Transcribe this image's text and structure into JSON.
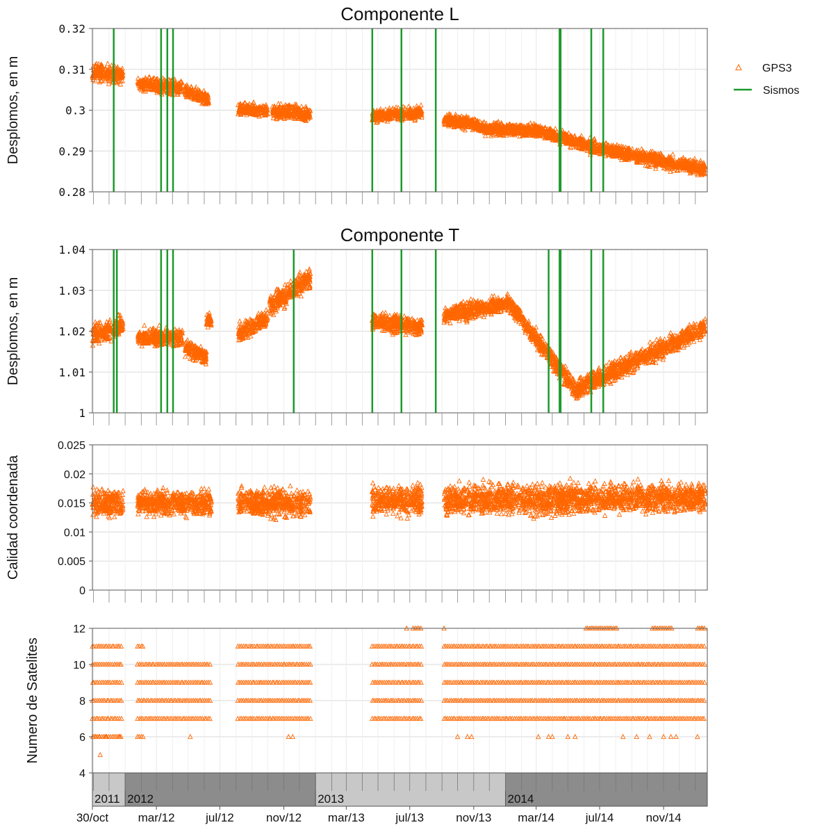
{
  "chart_data": [
    {
      "type": "scatter",
      "title": "Componente L",
      "ylabel": "Desplomos, en m",
      "ylim": [
        0.28,
        0.32
      ],
      "ytick_values": [
        0.28,
        0.29,
        0.3,
        0.31,
        0.32
      ],
      "ytick_labels": [
        "0.28",
        "0.29",
        "0.3",
        "0.31",
        "0.32"
      ],
      "segments": [
        {
          "x": [
            "2011-10-30",
            "2011-12-28"
          ],
          "y": [
            0.3095,
            0.3085
          ],
          "spread": 0.0025
        },
        {
          "x": [
            "2012-01-25",
            "2012-04-20"
          ],
          "y": [
            0.3065,
            0.3055
          ],
          "spread": 0.002
        },
        {
          "x": [
            "2012-04-25",
            "2012-06-10"
          ],
          "y": [
            0.3045,
            0.3025
          ],
          "spread": 0.002
        },
        {
          "x": [
            "2012-08-05",
            "2012-10-01"
          ],
          "y": [
            0.3003,
            0.2998
          ],
          "spread": 0.0018
        },
        {
          "x": [
            "2012-10-10",
            "2012-12-22"
          ],
          "y": [
            0.2998,
            0.2992
          ],
          "spread": 0.0022
        },
        {
          "x": [
            "2013-04-20",
            "2013-07-25"
          ],
          "y": [
            0.2985,
            0.2995
          ],
          "spread": 0.0018
        },
        {
          "x": [
            "2013-09-05",
            "2013-11-10"
          ],
          "y": [
            0.2978,
            0.2965
          ],
          "spread": 0.0018
        },
        {
          "x": [
            "2013-11-10",
            "2014-03-01"
          ],
          "y": [
            0.2955,
            0.295
          ],
          "spread": 0.0018
        },
        {
          "x": [
            "2014-03-01",
            "2014-06-10"
          ],
          "y": [
            0.295,
            0.2915
          ],
          "spread": 0.0018
        },
        {
          "x": [
            "2014-06-10",
            "2015-01-20"
          ],
          "y": [
            0.2912,
            0.2855
          ],
          "spread": 0.002
        }
      ],
      "series": [
        {
          "name": "GPS3",
          "color": "#FF6600",
          "marker": "triangle-open"
        },
        {
          "name": "Sismos",
          "color": "#1a9a2a",
          "kind": "vline"
        }
      ],
      "vlines": [
        "2011-12-10",
        "2012-03-10",
        "2012-03-22",
        "2012-04-02",
        "2013-04-20",
        "2013-06-15",
        "2013-08-20",
        "2014-04-15",
        "2014-04-17",
        "2014-06-15",
        "2014-07-08"
      ],
      "grid": true,
      "legend": "top-right"
    },
    {
      "type": "scatter",
      "title": "Componente T",
      "ylabel": "Desplomos, en m",
      "ylim": [
        1.0,
        1.04
      ],
      "ytick_values": [
        1.0,
        1.01,
        1.02,
        1.03,
        1.04
      ],
      "ytick_labels": [
        "1",
        "1.01",
        "1.02",
        "1.03",
        "1.04"
      ],
      "segments": [
        {
          "x": [
            "2011-10-30",
            "2011-12-28"
          ],
          "y": [
            1.019,
            1.0215
          ],
          "spread": 0.003
        },
        {
          "x": [
            "2012-01-25",
            "2012-04-20"
          ],
          "y": [
            1.0185,
            1.0185
          ],
          "spread": 0.0025
        },
        {
          "x": [
            "2012-04-25",
            "2012-06-05"
          ],
          "y": [
            1.016,
            1.014
          ],
          "spread": 0.0025
        },
        {
          "x": [
            "2012-06-05",
            "2012-06-15"
          ],
          "y": [
            1.0225,
            1.0225
          ],
          "spread": 0.002
        },
        {
          "x": [
            "2012-08-05",
            "2012-10-01"
          ],
          "y": [
            1.0195,
            1.0235
          ],
          "spread": 0.0025
        },
        {
          "x": [
            "2012-10-05",
            "2012-12-22"
          ],
          "y": [
            1.026,
            1.033
          ],
          "spread": 0.003
        },
        {
          "x": [
            "2013-04-20",
            "2013-07-25"
          ],
          "y": [
            1.0225,
            1.021
          ],
          "spread": 0.0025
        },
        {
          "x": [
            "2013-09-05",
            "2014-01-10"
          ],
          "y": [
            1.024,
            1.027
          ],
          "spread": 0.0025
        },
        {
          "x": [
            "2014-01-10",
            "2014-05-20"
          ],
          "y": [
            1.0265,
            1.005
          ],
          "spread": 0.0025
        },
        {
          "x": [
            "2014-05-20",
            "2015-01-20"
          ],
          "y": [
            1.006,
            1.021
          ],
          "spread": 0.0028
        }
      ],
      "series": [
        {
          "name": "GPS3",
          "color": "#FF6600",
          "marker": "triangle-open"
        },
        {
          "name": "Sismos",
          "color": "#1a9a2a",
          "kind": "vline"
        }
      ],
      "vlines": [
        "2011-12-10",
        "2011-12-16",
        "2012-03-10",
        "2012-03-22",
        "2012-04-02",
        "2012-11-20",
        "2013-04-20",
        "2013-06-15",
        "2013-08-20",
        "2014-03-25",
        "2014-04-15",
        "2014-04-17",
        "2014-06-15",
        "2014-07-08"
      ],
      "grid": true
    },
    {
      "type": "scatter",
      "ylabel": "Calidad coordenada",
      "ylim": [
        0,
        0.025
      ],
      "ytick_values": [
        0,
        0.005,
        0.01,
        0.015,
        0.02,
        0.025
      ],
      "ytick_labels": [
        "0",
        "0.005",
        "0.01",
        "0.015",
        "0.02",
        "0.025"
      ],
      "segments": [
        {
          "x": [
            "2011-10-30",
            "2011-12-28"
          ],
          "y": [
            0.015,
            0.015
          ],
          "spread": 0.0028
        },
        {
          "x": [
            "2012-01-25",
            "2012-06-15"
          ],
          "y": [
            0.015,
            0.015
          ],
          "spread": 0.0025
        },
        {
          "x": [
            "2012-08-05",
            "2012-12-22"
          ],
          "y": [
            0.015,
            0.015
          ],
          "spread": 0.0028
        },
        {
          "x": [
            "2013-04-20",
            "2013-07-25"
          ],
          "y": [
            0.0155,
            0.0155
          ],
          "spread": 0.0028
        },
        {
          "x": [
            "2013-09-05",
            "2015-01-20"
          ],
          "y": [
            0.0155,
            0.016
          ],
          "spread": 0.003
        }
      ],
      "series": [
        {
          "name": "GPS3",
          "color": "#FF6600",
          "marker": "triangle-open"
        }
      ],
      "grid": true
    },
    {
      "type": "scatter",
      "ylabel": "Numero de Satelites",
      "ylim": [
        4,
        12
      ],
      "ytick_values": [
        4,
        6,
        8,
        10,
        12
      ],
      "ytick_labels": [
        "4",
        "6",
        "8",
        "10",
        "12"
      ],
      "segments": [
        {
          "x": [
            "2011-10-30",
            "2011-12-28"
          ],
          "levels": [
            6,
            7,
            8,
            9,
            10,
            11
          ]
        },
        {
          "x": [
            "2012-01-25",
            "2012-02-05"
          ],
          "levels": [
            6,
            11
          ]
        },
        {
          "x": [
            "2012-01-25",
            "2012-06-15"
          ],
          "levels": [
            7,
            8,
            9,
            10
          ]
        },
        {
          "x": [
            "2012-08-05",
            "2012-12-22"
          ],
          "levels": [
            7,
            8,
            9,
            10,
            11
          ]
        },
        {
          "x": [
            "2013-04-20",
            "2013-07-25"
          ],
          "levels": [
            7,
            8,
            9,
            10,
            11
          ]
        },
        {
          "x": [
            "2013-07-08",
            "2013-07-25"
          ],
          "levels": [
            12
          ]
        },
        {
          "x": [
            "2013-09-05",
            "2015-01-20"
          ],
          "levels": [
            7,
            8,
            9,
            10,
            11
          ]
        },
        {
          "x": [
            "2014-06-05",
            "2014-08-05"
          ],
          "levels": [
            12
          ]
        },
        {
          "x": [
            "2014-10-10",
            "2014-11-20"
          ],
          "levels": [
            12
          ]
        },
        {
          "x": [
            "2015-01-05",
            "2015-01-20"
          ],
          "levels": [
            12
          ]
        }
      ],
      "outliers": [
        {
          "x": "2011-11-05",
          "y": 6
        },
        {
          "x": "2011-11-12",
          "y": 6
        },
        {
          "x": "2011-11-14",
          "y": 5
        },
        {
          "x": "2011-11-25",
          "y": 6
        },
        {
          "x": "2011-12-20",
          "y": 6
        },
        {
          "x": "2012-05-05",
          "y": 6
        },
        {
          "x": "2012-11-10",
          "y": 6
        },
        {
          "x": "2012-11-18",
          "y": 6
        },
        {
          "x": "2013-06-25",
          "y": 12
        },
        {
          "x": "2013-09-05",
          "y": 12
        },
        {
          "x": "2013-10-01",
          "y": 6
        },
        {
          "x": "2013-10-20",
          "y": 6
        },
        {
          "x": "2013-10-28",
          "y": 6
        },
        {
          "x": "2014-03-05",
          "y": 6
        },
        {
          "x": "2014-03-25",
          "y": 6
        },
        {
          "x": "2014-04-01",
          "y": 6
        },
        {
          "x": "2014-05-01",
          "y": 6
        },
        {
          "x": "2014-05-15",
          "y": 6
        },
        {
          "x": "2014-08-15",
          "y": 6
        },
        {
          "x": "2014-09-10",
          "y": 6
        },
        {
          "x": "2014-10-05",
          "y": 6
        },
        {
          "x": "2014-11-01",
          "y": 6
        },
        {
          "x": "2014-11-15",
          "y": 6
        },
        {
          "x": "2014-11-25",
          "y": 6
        },
        {
          "x": "2015-01-05",
          "y": 6
        }
      ],
      "series": [
        {
          "name": "GPS3",
          "color": "#FF6600",
          "marker": "triangle-open"
        }
      ],
      "grid": true
    }
  ],
  "x_axis": {
    "start": "2011-10-30",
    "end": "2015-01-24",
    "tick_labels": [
      {
        "label": "30/oct",
        "date": "2011-10-30"
      },
      {
        "label": "mar/12",
        "date": "2012-03-01"
      },
      {
        "label": "jul/12",
        "date": "2012-07-01"
      },
      {
        "label": "nov/12",
        "date": "2012-11-01"
      },
      {
        "label": "mar/13",
        "date": "2013-03-01"
      },
      {
        "label": "jul/13",
        "date": "2013-07-01"
      },
      {
        "label": "nov/13",
        "date": "2013-11-01"
      },
      {
        "label": "mar/14",
        "date": "2014-03-01"
      },
      {
        "label": "jul/14",
        "date": "2014-07-01"
      },
      {
        "label": "nov/14",
        "date": "2014-11-01"
      }
    ],
    "years": [
      {
        "label": "2011",
        "start": "2011-10-30",
        "end": "2012-01-01",
        "color": "#c8c8c8"
      },
      {
        "label": "2012",
        "start": "2012-01-01",
        "end": "2013-01-01",
        "color": "#8c8c8c"
      },
      {
        "label": "2013",
        "start": "2013-01-01",
        "end": "2014-01-01",
        "color": "#c8c8c8"
      },
      {
        "label": "2014",
        "start": "2014-01-01",
        "end": "2015-01-24",
        "color": "#8c8c8c"
      }
    ]
  },
  "legend": {
    "gps_label": "GPS3",
    "sismos_label": "Sismos",
    "gps_color": "#FF6600",
    "sismos_color": "#1a9a2a"
  }
}
